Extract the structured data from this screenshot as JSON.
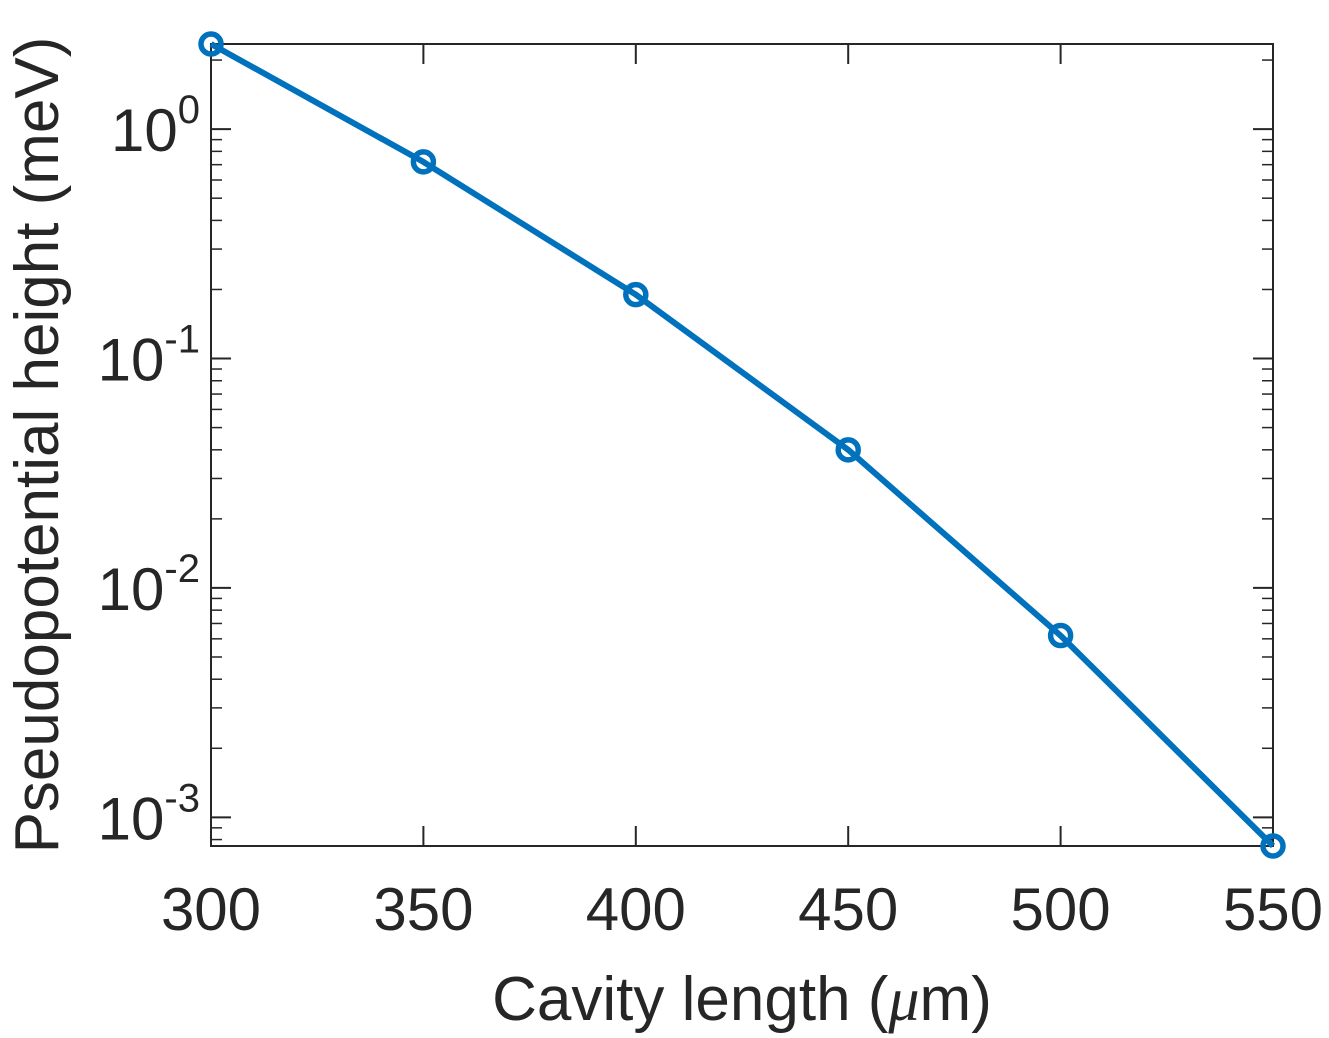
{
  "chart_data": {
    "type": "line",
    "title": "",
    "xlabel_text": "Cavity length (",
    "xlabel_mu": "μ",
    "xlabel_unit": "m)",
    "ylabel": "Pseudopotential height (meV)",
    "x_scale": "linear",
    "y_scale": "log",
    "xlim": [
      300,
      550
    ],
    "ylim": [
      0.00075,
      2.35
    ],
    "x_ticks": [
      300,
      350,
      400,
      450,
      500,
      550
    ],
    "x_tick_labels": [
      "300",
      "350",
      "400",
      "450",
      "500",
      "550"
    ],
    "y_ticks": [
      {
        "value": 1,
        "base": "10",
        "exponent": "0"
      },
      {
        "value": 0.1,
        "base": "10",
        "exponent": "-1"
      },
      {
        "value": 0.01,
        "base": "10",
        "exponent": "-2"
      },
      {
        "value": 0.001,
        "base": "10",
        "exponent": "-3"
      }
    ],
    "grid": false,
    "box": true,
    "legend": "none",
    "series": [
      {
        "color": "#0072BD",
        "marker": "circle",
        "x": [
          300,
          350,
          400,
          450,
          500,
          550
        ],
        "y": [
          2.35,
          0.72,
          0.19,
          0.04,
          0.0062,
          0.00075
        ]
      }
    ]
  }
}
